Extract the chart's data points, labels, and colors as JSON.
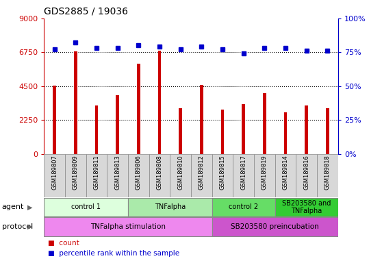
{
  "title": "GDS2885 / 19036",
  "samples": [
    "GSM189807",
    "GSM189809",
    "GSM189811",
    "GSM189813",
    "GSM189806",
    "GSM189808",
    "GSM189810",
    "GSM189812",
    "GSM189815",
    "GSM189817",
    "GSM189819",
    "GSM189814",
    "GSM189816",
    "GSM189818"
  ],
  "counts": [
    4550,
    6800,
    3200,
    3900,
    6000,
    6850,
    3050,
    4600,
    2950,
    3300,
    4050,
    2750,
    3200,
    3050
  ],
  "percentiles": [
    77,
    82,
    78,
    78,
    80,
    79,
    77,
    79,
    77,
    74,
    78,
    78,
    76,
    76
  ],
  "ylim_left": [
    0,
    9000
  ],
  "ylim_right": [
    0,
    100
  ],
  "yticks_left": [
    0,
    2250,
    4500,
    6750,
    9000
  ],
  "ytick_labels_left": [
    "0",
    "2250",
    "4500",
    "6750",
    "9000"
  ],
  "yticks_right": [
    0,
    25,
    50,
    75,
    100
  ],
  "ytick_labels_right": [
    "0%",
    "25%",
    "50%",
    "75%",
    "100%"
  ],
  "bar_color": "#cc0000",
  "dot_color": "#0000cc",
  "agent_groups": [
    {
      "label": "control 1",
      "start": 0,
      "end": 4,
      "color": "#ddffdd"
    },
    {
      "label": "TNFalpha",
      "start": 4,
      "end": 8,
      "color": "#aaeaaa"
    },
    {
      "label": "control 2",
      "start": 8,
      "end": 11,
      "color": "#66dd66"
    },
    {
      "label": "SB203580 and\nTNFalpha",
      "start": 11,
      "end": 14,
      "color": "#33cc33"
    }
  ],
  "protocol_groups": [
    {
      "label": "TNFalpha stimulation",
      "start": 0,
      "end": 8,
      "color": "#ee88ee"
    },
    {
      "label": "SB203580 preincubation",
      "start": 8,
      "end": 14,
      "color": "#cc55cc"
    }
  ],
  "legend_items": [
    {
      "label": "count",
      "color": "#cc0000"
    },
    {
      "label": "percentile rank within the sample",
      "color": "#0000cc"
    }
  ],
  "background_color": "#ffffff",
  "sample_box_color": "#d8d8d8",
  "agent_row_label": "agent",
  "protocol_row_label": "protocol",
  "bar_width": 0.15
}
